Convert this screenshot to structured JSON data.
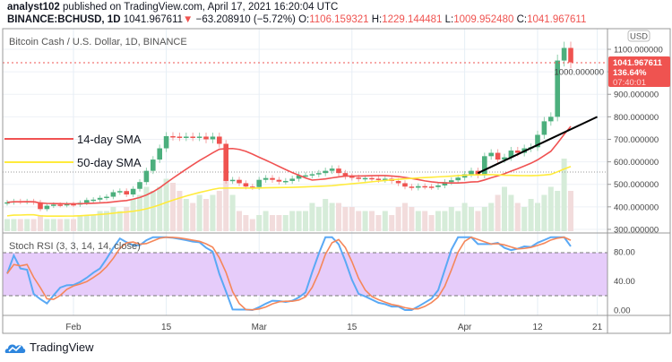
{
  "header": {
    "author": "analyst102",
    "published_text": "published on TradingView.com, April 17, 2021 16:20:04 UTC",
    "symbol": "BINANCE:BCHUSD, 1D",
    "last": "1041.967611",
    "change": "−63.208910 (−5.72%)",
    "o_label": "O:",
    "o": "1106.159321",
    "h_label": "H:",
    "h": "1229.144481",
    "l_label": "L:",
    "l": "1009.952480",
    "c_label": "C:",
    "c": "1041.967611",
    "direction_icon": "triangle-down-icon"
  },
  "chart_title": "Bitcoin Cash / U.S. Dollar, 1D, BINANCE",
  "currency": "USD",
  "price_label": {
    "price": "1041.967611",
    "percent": "136.64%",
    "countdown": "07:40:01"
  },
  "legend": [
    {
      "label": "14-day SMA",
      "color": "#f05252"
    },
    {
      "label": "50-day SMA",
      "color": "#ffeb3b"
    }
  ],
  "colors": {
    "up": "#26a69a",
    "up_candle": "#4caf7d",
    "down": "#ef5350",
    "k_line": "#5aa9f5",
    "d_line": "#f5875a",
    "rsi_band": "#e6ccfa"
  },
  "price_axis": [
    "1100.000000",
    "1000.000000",
    "900.000000",
    "800.000000",
    "700.000000",
    "600.000000",
    "500.000000",
    "400.000000",
    "300.000000"
  ],
  "rsi": {
    "title": "Stoch RSI (3, 3, 14, 14, close)",
    "axis": [
      "80.00",
      "40.00",
      "0.00"
    ],
    "upper": 80,
    "lower": 20
  },
  "time_axis": [
    {
      "label": "Feb",
      "day": 10
    },
    {
      "label": "15",
      "day": 24
    },
    {
      "label": "Mar",
      "day": 38
    },
    {
      "label": "15",
      "day": 52
    },
    {
      "label": "Apr",
      "day": 69
    },
    {
      "label": "12",
      "day": 80
    },
    {
      "label": "21",
      "day": 89
    }
  ],
  "chart_data": {
    "type": "candlestick",
    "start_date": "2021-01-22",
    "ylim": [
      300,
      1100
    ],
    "closes": [
      420,
      425,
      422,
      425,
      420,
      390,
      405,
      410,
      408,
      412,
      410,
      418,
      430,
      432,
      440,
      445,
      465,
      470,
      455,
      480,
      510,
      560,
      610,
      660,
      714,
      712,
      710,
      712,
      710,
      712,
      700,
      712,
      680,
      515,
      520,
      505,
      490,
      488,
      520,
      528,
      520,
      512,
      515,
      525,
      540,
      540,
      545,
      550,
      560,
      570,
      550,
      535,
      530,
      525,
      528,
      525,
      520,
      525,
      515,
      505,
      490,
      485,
      492,
      490,
      488,
      495,
      510,
      518,
      530,
      545,
      560,
      540,
      625,
      640,
      610,
      620,
      650,
      640,
      660,
      665,
      720,
      780,
      800,
      1050,
      1106,
      1042
    ],
    "volume": [
      3,
      3,
      3,
      3,
      3,
      4,
      3,
      3,
      3,
      3,
      3,
      4,
      4,
      4,
      5,
      5,
      6,
      5,
      6,
      8,
      9,
      11,
      10,
      11,
      13,
      12,
      10,
      8,
      7,
      9,
      8,
      9,
      10,
      13,
      9,
      5,
      4,
      3,
      4,
      5,
      4,
      4,
      4,
      5,
      5,
      5,
      7,
      6,
      8,
      7,
      7,
      6,
      6,
      5,
      5,
      5,
      4,
      5,
      4,
      6,
      7,
      6,
      5,
      5,
      4,
      5,
      5,
      6,
      5,
      7,
      6,
      5,
      6,
      7,
      9,
      11,
      9,
      7,
      6,
      8,
      7,
      9,
      11,
      10,
      18,
      10
    ],
    "trendline": [
      {
        "day": 71,
        "price": 550
      },
      {
        "day": 89,
        "price": 800
      }
    ]
  }
}
